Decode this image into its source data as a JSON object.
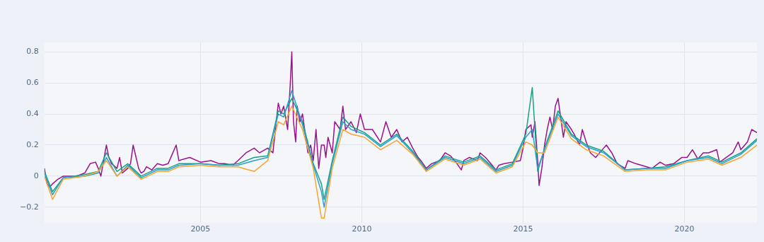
{
  "chart_data": {
    "type": "line",
    "xlim": [
      "2000-03",
      "2022-04"
    ],
    "ylim": [
      -0.3,
      0.86
    ],
    "xticks": [
      {
        "value": "2005",
        "label": "2005"
      },
      {
        "value": "2010",
        "label": "2010"
      },
      {
        "value": "2015",
        "label": "2015"
      },
      {
        "value": "2020",
        "label": "2020"
      }
    ],
    "yticks": [
      {
        "value": -0.2,
        "label": "−0.2"
      },
      0,
      0.2,
      0.4,
      0.6,
      0.8
    ],
    "grid": true,
    "marker": "none",
    "line_style": "solid",
    "series": [
      {
        "color": "#f8a52c",
        "x": [
          "2000-03",
          "2000-06",
          "2000-10",
          "2001-06",
          "2001-11",
          "2002-02",
          "2002-06",
          "2002-10",
          "2003-03",
          "2003-09",
          "2004-01",
          "2004-05",
          "2005-01",
          "2005-08",
          "2006-03",
          "2006-09",
          "2007-02",
          "2007-06",
          "2007-08",
          "2007-11-01",
          "2008-03",
          "2008-07",
          "2008-10",
          "2008-11",
          "2009-02",
          "2009-06",
          "2009-09",
          "2010-02",
          "2010-08",
          "2011-02",
          "2011-08",
          "2012-01",
          "2012-08",
          "2013-03",
          "2013-09",
          "2014-03",
          "2014-09",
          "2015-02",
          "2015-04-15",
          "2015-06-15",
          "2015-09",
          "2016-02",
          "2016-07",
          "2016-12-15",
          "2017-07",
          "2018-03",
          "2018-11",
          "2019-06",
          "2020-02",
          "2020-10",
          "2021-03",
          "2021-10",
          "2022-04"
        ],
        "values": [
          0.0,
          -0.15,
          -0.02,
          0.0,
          0.03,
          0.1,
          0.0,
          0.06,
          -0.02,
          0.03,
          0.03,
          0.06,
          0.07,
          0.06,
          0.06,
          0.03,
          0.1,
          0.35,
          0.33,
          0.45,
          0.3,
          0.05,
          -0.27,
          -0.27,
          0.05,
          0.3,
          0.27,
          0.25,
          0.17,
          0.23,
          0.14,
          0.03,
          0.11,
          0.07,
          0.11,
          0.02,
          0.06,
          0.22,
          0.2,
          0.15,
          0.15,
          0.38,
          0.24,
          0.17,
          0.13,
          0.03,
          0.04,
          0.04,
          0.09,
          0.11,
          0.07,
          0.12,
          0.2
        ]
      },
      {
        "color": "#2a9fd0",
        "x": [
          "2000-03",
          "2000-06",
          "2000-10",
          "2001-06",
          "2001-11",
          "2002-02",
          "2002-06",
          "2002-10",
          "2003-03",
          "2003-09",
          "2004-01",
          "2004-05",
          "2005-01",
          "2005-08",
          "2006-03",
          "2006-09",
          "2007-02",
          "2007-06",
          "2007-08",
          "2007-11-01",
          "2008-03",
          "2008-07",
          "2008-10",
          "2008-11",
          "2009-02",
          "2009-06",
          "2009-09",
          "2010-02",
          "2010-08",
          "2011-02",
          "2011-08",
          "2012-01",
          "2012-08",
          "2013-03",
          "2013-09",
          "2014-03",
          "2014-09",
          "2015-02",
          "2015-04-15",
          "2015-06-15",
          "2015-09",
          "2016-02",
          "2016-07",
          "2016-12-15",
          "2017-07",
          "2018-03",
          "2018-11",
          "2019-06",
          "2020-02",
          "2020-10",
          "2021-03",
          "2021-10",
          "2022-04"
        ],
        "values": [
          0.02,
          -0.12,
          -0.01,
          0.0,
          0.02,
          0.12,
          0.0,
          0.07,
          -0.01,
          0.04,
          0.04,
          0.07,
          0.08,
          0.07,
          0.07,
          0.1,
          0.12,
          0.4,
          0.38,
          0.55,
          0.33,
          0.07,
          -0.1,
          -0.2,
          0.08,
          0.35,
          0.3,
          0.27,
          0.19,
          0.26,
          0.15,
          0.04,
          0.12,
          0.08,
          0.12,
          0.03,
          0.07,
          0.25,
          0.3,
          0.05,
          0.17,
          0.4,
          0.26,
          0.19,
          0.15,
          0.04,
          0.05,
          0.05,
          0.1,
          0.12,
          0.08,
          0.14,
          0.23
        ]
      },
      {
        "color": "#16a384",
        "x": [
          "2000-03",
          "2000-06",
          "2000-10",
          "2001-06",
          "2001-11",
          "2002-02",
          "2002-06",
          "2002-10",
          "2003-03",
          "2003-09",
          "2004-01",
          "2004-05",
          "2005-01",
          "2005-08",
          "2006-03",
          "2006-09",
          "2007-02",
          "2007-06",
          "2007-08",
          "2007-11-01",
          "2008-03",
          "2008-07",
          "2008-10",
          "2008-11",
          "2009-02",
          "2009-06",
          "2009-09",
          "2010-02",
          "2010-08",
          "2011-02",
          "2011-08",
          "2012-01",
          "2012-08",
          "2013-03",
          "2013-09",
          "2014-03",
          "2014-09",
          "2015-02",
          "2015-04-15",
          "2015-06-15",
          "2015-09",
          "2016-02",
          "2016-07",
          "2016-12-15",
          "2017-07",
          "2018-03",
          "2018-11",
          "2019-06",
          "2020-02",
          "2020-10",
          "2021-03",
          "2021-10",
          "2022-04"
        ],
        "values": [
          0.03,
          -0.1,
          -0.01,
          0.01,
          0.03,
          0.15,
          0.03,
          0.08,
          0.0,
          0.05,
          0.05,
          0.08,
          0.08,
          0.07,
          0.08,
          0.12,
          0.13,
          0.42,
          0.4,
          0.5,
          0.35,
          0.08,
          -0.05,
          -0.15,
          0.1,
          0.38,
          0.32,
          0.28,
          0.2,
          0.27,
          0.16,
          0.04,
          0.13,
          0.09,
          0.13,
          0.04,
          0.08,
          0.27,
          0.57,
          0.03,
          0.18,
          0.42,
          0.27,
          0.2,
          0.16,
          0.04,
          0.05,
          0.06,
          0.1,
          0.13,
          0.09,
          0.15,
          0.24
        ]
      },
      {
        "color": "#9c118c",
        "x": [
          "2000-03",
          "2000-04",
          "2000-05",
          "2000-06",
          "2000-08",
          "2000-10",
          "2001-03",
          "2001-06",
          "2001-08",
          "2001-10",
          "2001-11",
          "2001-12",
          "2002-02",
          "2002-03",
          "2002-04",
          "2002-06",
          "2002-07",
          "2002-08",
          "2002-10",
          "2002-11",
          "2002-12",
          "2003-02",
          "2003-03",
          "2003-04",
          "2003-05",
          "2003-07",
          "2003-09",
          "2003-11",
          "2004-01",
          "2004-04",
          "2004-05",
          "2004-09",
          "2005-01",
          "2005-05",
          "2005-08",
          "2005-10",
          "2006-01",
          "2006-03",
          "2006-06",
          "2006-09",
          "2006-11",
          "2007-02",
          "2007-04",
          "2007-06",
          "2007-07",
          "2007-08",
          "2007-09-15",
          "2007-10-15",
          "2007-11-01",
          "2007-11-20",
          "2007-12-15",
          "2008-01-01",
          "2008-02",
          "2008-03",
          "2008-05",
          "2008-06",
          "2008-07",
          "2008-08",
          "2008-09",
          "2008-10",
          "2008-11",
          "2008-11-20",
          "2008-12-15",
          "2009-02",
          "2009-03",
          "2009-05",
          "2009-06",
          "2009-07",
          "2009-09",
          "2009-11",
          "2009-12-15",
          "2010-02",
          "2010-05",
          "2010-08",
          "2010-10",
          "2010-12",
          "2011-02",
          "2011-04",
          "2011-06",
          "2011-08",
          "2011-10",
          "2011-11",
          "2012-01",
          "2012-03",
          "2012-06",
          "2012-08",
          "2012-10",
          "2012-12",
          "2013-02",
          "2013-03",
          "2013-05",
          "2013-08",
          "2013-09",
          "2013-11",
          "2014-01",
          "2014-03",
          "2014-04",
          "2014-06",
          "2014-09",
          "2014-12",
          "2015-01",
          "2015-02",
          "2015-04",
          "2015-04-15",
          "2015-05-15",
          "2015-06-15",
          "2015-07",
          "2015-08",
          "2015-09",
          "2015-10",
          "2015-11",
          "2015-12",
          "2016-01",
          "2016-02",
          "2016-03",
          "2016-04",
          "2016-05",
          "2016-07",
          "2016-08",
          "2016-10",
          "2016-11",
          "2016-12-15",
          "2017-02",
          "2017-04",
          "2017-07",
          "2017-08",
          "2017-10",
          "2017-12",
          "2018-03",
          "2018-04",
          "2018-07",
          "2018-11",
          "2019-01",
          "2019-04",
          "2019-06",
          "2019-09",
          "2019-12",
          "2020-02",
          "2020-04",
          "2020-06",
          "2020-08",
          "2020-10",
          "2021-01",
          "2021-02",
          "2021-03",
          "2021-07",
          "2021-09",
          "2021-10",
          "2021-12-15",
          "2022-02",
          "2022-04"
        ],
        "values": [
          0.05,
          -0.05,
          -0.07,
          -0.05,
          -0.02,
          0.0,
          0.0,
          0.02,
          0.08,
          0.09,
          0.05,
          0.0,
          0.2,
          0.12,
          0.08,
          0.05,
          0.12,
          0.02,
          0.05,
          0.08,
          0.2,
          0.05,
          0.02,
          0.03,
          0.06,
          0.04,
          0.08,
          0.07,
          0.08,
          0.2,
          0.1,
          0.12,
          0.09,
          0.1,
          0.08,
          0.08,
          0.07,
          0.1,
          0.15,
          0.18,
          0.15,
          0.18,
          0.15,
          0.47,
          0.4,
          0.45,
          0.3,
          0.6,
          0.8,
          0.35,
          0.22,
          0.45,
          0.35,
          0.4,
          0.15,
          0.2,
          0.1,
          0.3,
          0.05,
          0.2,
          0.2,
          0.12,
          0.25,
          0.15,
          0.35,
          0.3,
          0.45,
          0.3,
          0.35,
          0.28,
          0.4,
          0.3,
          0.3,
          0.22,
          0.35,
          0.25,
          0.3,
          0.22,
          0.25,
          0.18,
          0.12,
          0.1,
          0.05,
          0.08,
          0.1,
          0.15,
          0.13,
          0.09,
          0.04,
          0.1,
          0.12,
          0.1,
          0.15,
          0.12,
          0.08,
          0.04,
          0.07,
          0.08,
          0.09,
          0.1,
          0.18,
          0.3,
          0.33,
          0.25,
          0.35,
          0.1,
          -0.06,
          0.05,
          0.2,
          0.3,
          0.38,
          0.3,
          0.45,
          0.5,
          0.38,
          0.25,
          0.35,
          0.3,
          0.27,
          0.2,
          0.3,
          0.22,
          0.15,
          0.12,
          0.18,
          0.2,
          0.15,
          0.08,
          0.05,
          0.1,
          0.08,
          0.06,
          0.05,
          0.09,
          0.07,
          0.08,
          0.12,
          0.12,
          0.17,
          0.11,
          0.15,
          0.15,
          0.17,
          0.09,
          0.1,
          0.15,
          0.22,
          0.17,
          0.22,
          0.3,
          0.28
        ]
      }
    ]
  }
}
